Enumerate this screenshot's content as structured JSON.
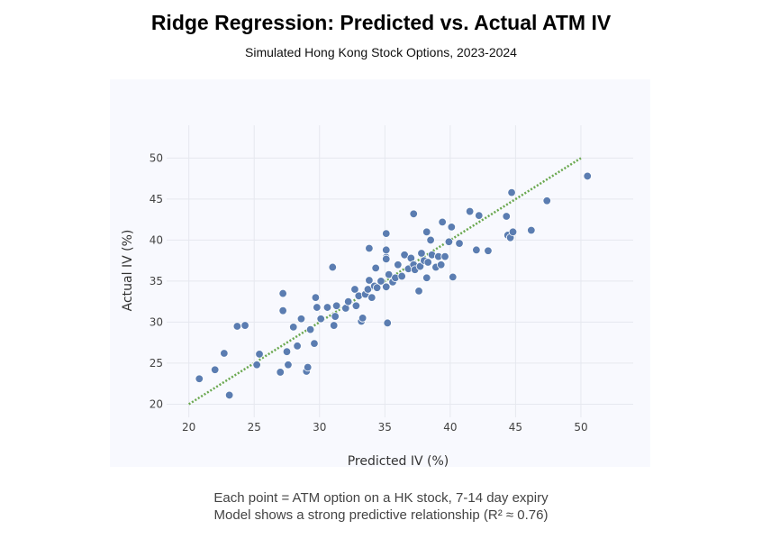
{
  "chart_data": {
    "type": "scatter",
    "title": "Ridge Regression: Predicted vs. Actual ATM IV",
    "subtitle": "Simulated Hong Kong Stock Options, 2023-2024",
    "xlabel": "Predicted IV (%)",
    "ylabel": "Actual IV (%)",
    "xlim": [
      18.3,
      54
    ],
    "ylim": [
      18.4,
      54
    ],
    "xticks": [
      20,
      25,
      30,
      35,
      40,
      45,
      50
    ],
    "yticks": [
      20,
      25,
      30,
      35,
      40,
      45,
      50
    ],
    "grid": true,
    "reference_line": {
      "x": [
        20,
        50
      ],
      "y": [
        20,
        50
      ],
      "color": "#6aa84f",
      "style": "dotted"
    },
    "point_color": "#5b7db1",
    "points": [
      [
        20.8,
        23.1
      ],
      [
        22.0,
        24.2
      ],
      [
        22.7,
        26.2
      ],
      [
        23.1,
        21.1
      ],
      [
        23.7,
        29.5
      ],
      [
        24.3,
        29.6
      ],
      [
        25.2,
        24.8
      ],
      [
        25.4,
        26.1
      ],
      [
        27.0,
        23.9
      ],
      [
        27.2,
        33.5
      ],
      [
        27.2,
        31.4
      ],
      [
        27.5,
        26.4
      ],
      [
        27.6,
        24.8
      ],
      [
        28.0,
        29.4
      ],
      [
        28.3,
        27.1
      ],
      [
        28.6,
        30.4
      ],
      [
        29.0,
        24.0
      ],
      [
        29.1,
        24.5
      ],
      [
        29.3,
        29.1
      ],
      [
        29.6,
        27.4
      ],
      [
        29.7,
        33.0
      ],
      [
        29.8,
        31.8
      ],
      [
        30.1,
        30.4
      ],
      [
        30.6,
        31.8
      ],
      [
        31.0,
        36.7
      ],
      [
        31.1,
        29.6
      ],
      [
        31.2,
        30.7
      ],
      [
        31.3,
        32.0
      ],
      [
        32.0,
        31.7
      ],
      [
        32.2,
        32.5
      ],
      [
        32.7,
        34.0
      ],
      [
        32.8,
        32.0
      ],
      [
        33.0,
        33.2
      ],
      [
        33.2,
        30.1
      ],
      [
        33.3,
        30.5
      ],
      [
        33.5,
        33.4
      ],
      [
        33.7,
        34.0
      ],
      [
        33.8,
        39.0
      ],
      [
        33.8,
        35.1
      ],
      [
        34.0,
        33.0
      ],
      [
        34.2,
        34.4
      ],
      [
        34.3,
        36.6
      ],
      [
        34.4,
        34.2
      ],
      [
        34.7,
        35.0
      ],
      [
        35.1,
        40.8
      ],
      [
        35.1,
        38.8
      ],
      [
        35.1,
        37.9
      ],
      [
        35.1,
        37.7
      ],
      [
        35.1,
        34.3
      ],
      [
        35.2,
        29.9
      ],
      [
        35.3,
        35.8
      ],
      [
        35.6,
        34.9
      ],
      [
        35.8,
        35.4
      ],
      [
        36.0,
        37.0
      ],
      [
        36.3,
        35.6
      ],
      [
        36.5,
        38.2
      ],
      [
        36.8,
        36.5
      ],
      [
        37.0,
        37.8
      ],
      [
        37.2,
        43.2
      ],
      [
        37.2,
        37.0
      ],
      [
        37.3,
        36.4
      ],
      [
        37.6,
        33.8
      ],
      [
        37.7,
        36.8
      ],
      [
        37.8,
        38.4
      ],
      [
        38.0,
        37.5
      ],
      [
        38.2,
        41.0
      ],
      [
        38.2,
        35.4
      ],
      [
        38.3,
        37.3
      ],
      [
        38.5,
        40.0
      ],
      [
        38.6,
        38.2
      ],
      [
        38.9,
        36.7
      ],
      [
        39.1,
        38.0
      ],
      [
        39.3,
        37.0
      ],
      [
        39.4,
        42.2
      ],
      [
        39.6,
        38.0
      ],
      [
        39.9,
        39.8
      ],
      [
        40.1,
        41.6
      ],
      [
        40.2,
        35.5
      ],
      [
        40.7,
        39.6
      ],
      [
        41.5,
        43.5
      ],
      [
        42.0,
        38.8
      ],
      [
        42.2,
        43.0
      ],
      [
        42.9,
        38.7
      ],
      [
        44.3,
        42.9
      ],
      [
        44.4,
        40.6
      ],
      [
        44.6,
        40.3
      ],
      [
        44.7,
        45.8
      ],
      [
        44.8,
        41.0
      ],
      [
        46.2,
        41.2
      ],
      [
        47.4,
        44.8
      ],
      [
        50.5,
        47.8
      ]
    ],
    "annotations": [
      "Each point = ATM option on a HK stock, 7-14 day expiry",
      "Model shows a strong predictive relationship (R² ≈ 0.76)"
    ]
  }
}
